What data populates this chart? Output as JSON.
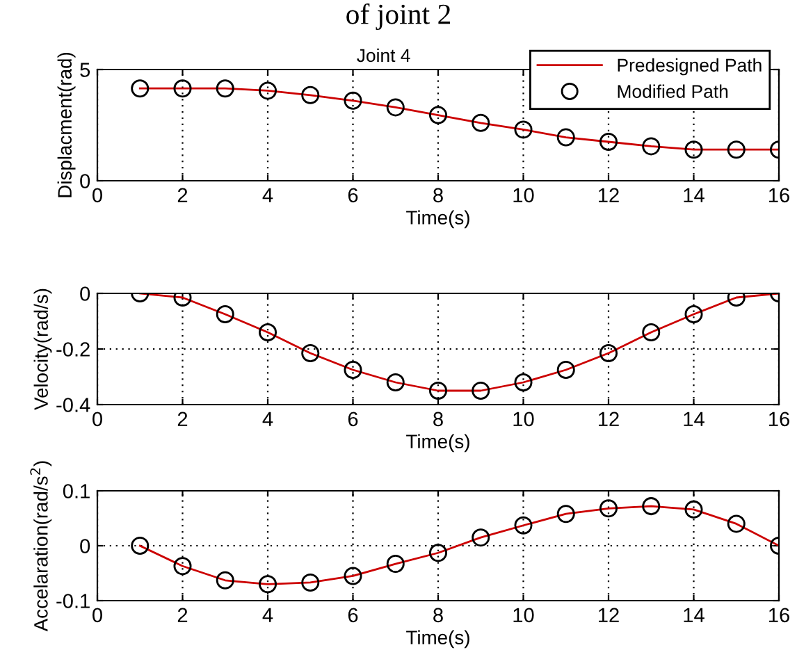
{
  "chart_data": [
    {
      "type": "line",
      "title": "Joint 4",
      "annotations": [
        "of joint 2"
      ],
      "xlabel": "Time(s)",
      "ylabel": "Displacment(rad)",
      "x": [
        1,
        2,
        3,
        4,
        5,
        6,
        7,
        8,
        9,
        10,
        11,
        12,
        13,
        14,
        15,
        16
      ],
      "xlim": [
        0,
        16
      ],
      "xticks": [
        0,
        2,
        4,
        6,
        8,
        10,
        12,
        14,
        16
      ],
      "ylim": [
        0,
        5
      ],
      "yticks": [
        0,
        5
      ],
      "grid": true,
      "legend": "top right",
      "series": [
        {
          "name": "Predesigned Path",
          "color": "#cc0000",
          "values": [
            4.15,
            4.15,
            4.15,
            4.05,
            3.85,
            3.6,
            3.3,
            2.95,
            2.6,
            2.3,
            1.95,
            1.75,
            1.55,
            1.4,
            1.4,
            1.4
          ]
        },
        {
          "name": "Modified Path",
          "type": "scatter",
          "marker": "circle",
          "color": "#000000",
          "values": [
            4.15,
            4.15,
            4.15,
            4.05,
            3.85,
            3.6,
            3.3,
            2.95,
            2.6,
            2.3,
            1.95,
            1.75,
            1.55,
            1.4,
            1.4,
            1.4
          ]
        }
      ]
    },
    {
      "type": "line",
      "xlabel": "Time(s)",
      "ylabel": "Velocity(rad/s)",
      "x": [
        1,
        2,
        3,
        4,
        5,
        6,
        7,
        8,
        9,
        10,
        11,
        12,
        13,
        14,
        15,
        16
      ],
      "xlim": [
        0,
        16
      ],
      "xticks": [
        0,
        2,
        4,
        6,
        8,
        10,
        12,
        14,
        16
      ],
      "ylim": [
        -0.4,
        0
      ],
      "yticks": [
        -0.4,
        -0.2,
        0
      ],
      "grid": true,
      "legend": false,
      "series": [
        {
          "color": "#cc0000",
          "values": [
            0,
            -0.015,
            -0.075,
            -0.14,
            -0.215,
            -0.275,
            -0.32,
            -0.35,
            -0.35,
            -0.32,
            -0.275,
            -0.215,
            -0.14,
            -0.075,
            -0.015,
            0
          ]
        },
        {
          "type": "scatter",
          "marker": "circle",
          "color": "#000000",
          "values": [
            0,
            -0.015,
            -0.075,
            -0.14,
            -0.215,
            -0.275,
            -0.32,
            -0.35,
            -0.35,
            -0.32,
            -0.275,
            -0.215,
            -0.14,
            -0.075,
            -0.015,
            0
          ]
        }
      ]
    },
    {
      "type": "line",
      "xlabel": "Time(s)",
      "ylabel": "Accelaration(rad/s$^{2}$)",
      "x": [
        1,
        2,
        3,
        4,
        5,
        6,
        7,
        8,
        9,
        10,
        11,
        12,
        13,
        14,
        15,
        16
      ],
      "xlim": [
        0,
        16
      ],
      "xticks": [
        0,
        2,
        4,
        6,
        8,
        10,
        12,
        14,
        16
      ],
      "ylim": [
        -0.1,
        0.1
      ],
      "yticks": [
        -0.1,
        0,
        0.1
      ],
      "grid": true,
      "legend": false,
      "series": [
        {
          "color": "#cc0000",
          "values": [
            0,
            -0.037,
            -0.063,
            -0.07,
            -0.067,
            -0.055,
            -0.033,
            -0.013,
            0.015,
            0.037,
            0.058,
            0.068,
            0.072,
            0.066,
            0.04,
            0
          ]
        },
        {
          "type": "scatter",
          "marker": "circle",
          "color": "#000000",
          "values": [
            0,
            -0.037,
            -0.063,
            -0.07,
            -0.067,
            -0.055,
            -0.033,
            -0.013,
            0.015,
            0.037,
            0.058,
            0.068,
            0.072,
            0.066,
            0.04,
            0
          ]
        }
      ]
    }
  ]
}
